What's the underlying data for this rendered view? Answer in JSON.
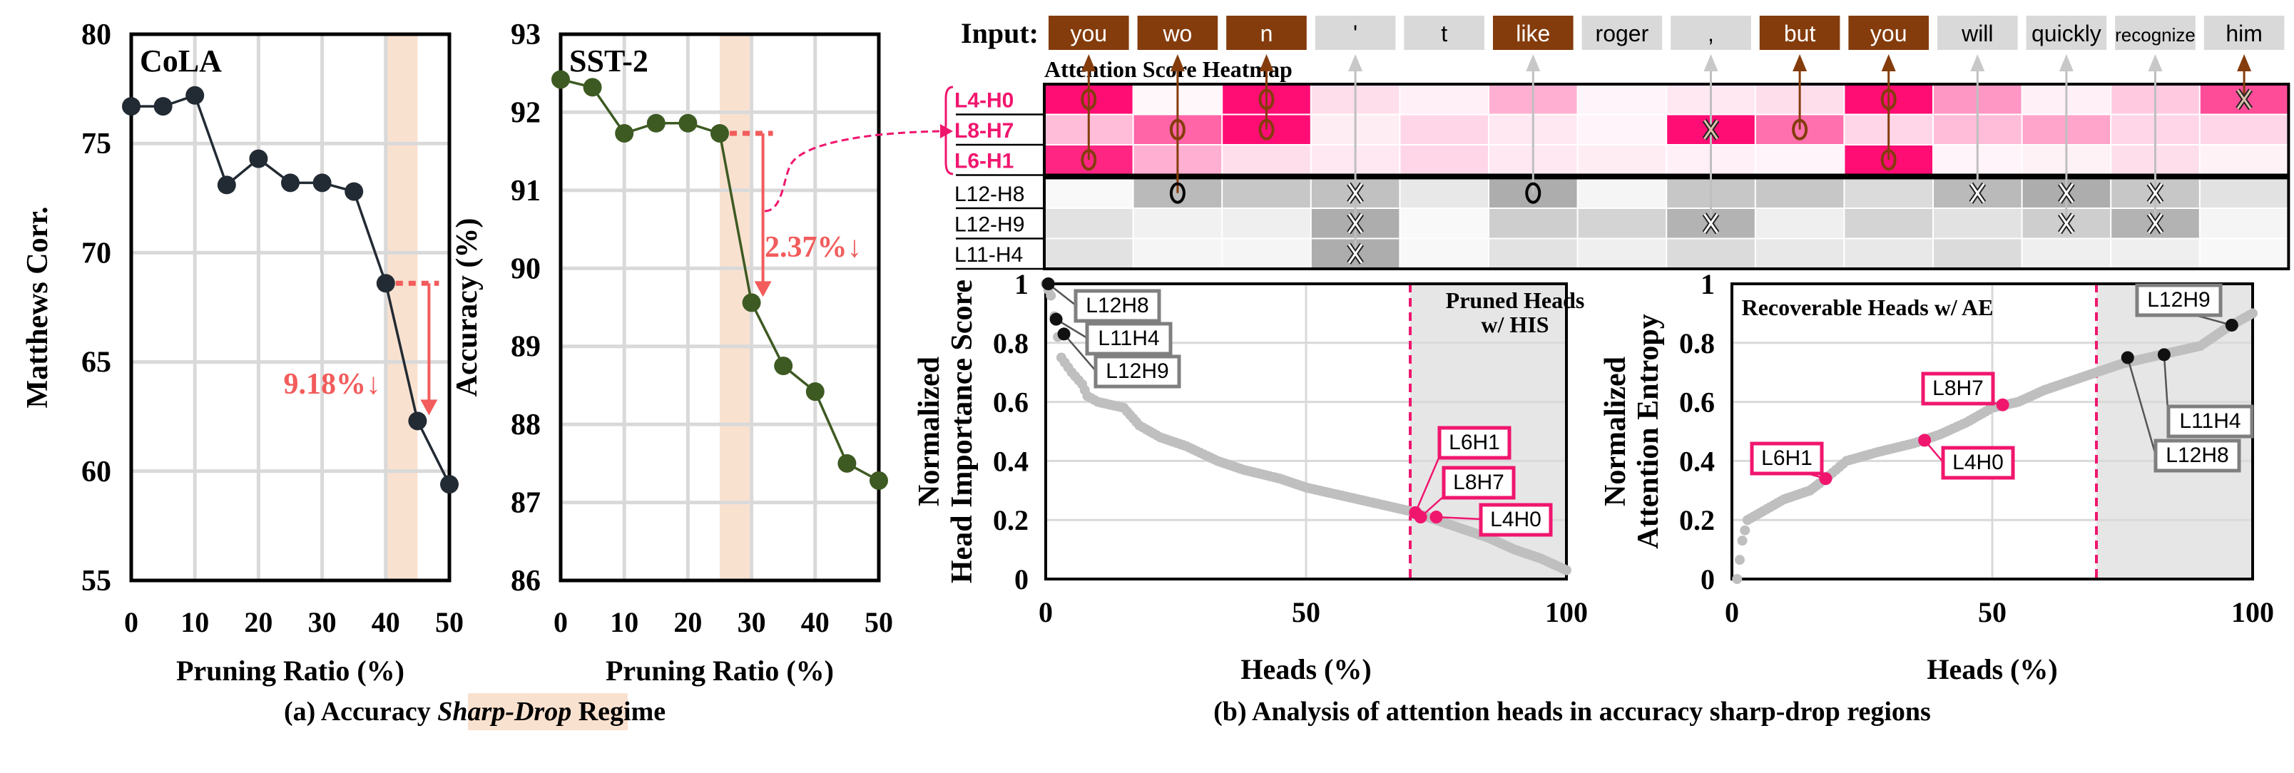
{
  "colors": {
    "cola_line": "#222a33",
    "sst2_line": "#3d5a22",
    "drop_highlight": "#f9e1d0",
    "drop_arrow": "#f25c5c",
    "pink_accent": "#f0166e",
    "token_selected": "#843c0c",
    "token_unselected": "#d9d9d9",
    "grid": "#d9d9d9",
    "scatter_gray": "#bfbfbf",
    "pruned_region": "#e6e6e6"
  },
  "chart_data": [
    {
      "id": "cola",
      "type": "line",
      "title": "CoLA",
      "xlabel": "Pruning Ratio (%)",
      "ylabel": "Matthews Corr.",
      "x": [
        0,
        5,
        10,
        15,
        20,
        25,
        30,
        35,
        40,
        45,
        50
      ],
      "values": [
        76.7,
        76.7,
        77.2,
        73.1,
        74.3,
        73.2,
        73.2,
        72.8,
        68.6,
        62.3,
        59.4
      ],
      "xlim": [
        0,
        50
      ],
      "ylim": [
        55,
        80
      ],
      "xticks": [
        "0",
        "10",
        "20",
        "30",
        "40",
        "50"
      ],
      "yticks": [
        "55",
        "60",
        "65",
        "70",
        "75",
        "80"
      ],
      "grid": true,
      "highlight_range": [
        40,
        45
      ],
      "annotation": {
        "text": "9.18%↓",
        "from_x": 40,
        "to_x": 45
      }
    },
    {
      "id": "sst2",
      "type": "line",
      "title": "SST-2",
      "xlabel": "Pruning Ratio (%)",
      "ylabel": "Accuracy (%)",
      "x": [
        0,
        5,
        10,
        15,
        20,
        25,
        30,
        35,
        40,
        45,
        50
      ],
      "values": [
        92.42,
        92.32,
        91.73,
        91.86,
        91.86,
        91.73,
        89.56,
        88.75,
        88.42,
        87.5,
        87.28
      ],
      "xlim": [
        0,
        50
      ],
      "ylim": [
        86,
        93
      ],
      "xticks": [
        "0",
        "10",
        "20",
        "30",
        "40",
        "50"
      ],
      "yticks": [
        "86",
        "87",
        "88",
        "89",
        "90",
        "91",
        "92",
        "93"
      ],
      "grid": true,
      "highlight_range": [
        25,
        30
      ],
      "annotation": {
        "text": "2.37%↓",
        "from_x": 25,
        "to_x": 30
      }
    },
    {
      "id": "heatmap",
      "type": "heatmap",
      "title": "Attention Score Heatmap",
      "input_label": "Input:",
      "tokens": [
        {
          "text": "you",
          "selected": true
        },
        {
          "text": "wo",
          "selected": true
        },
        {
          "text": "n",
          "selected": true
        },
        {
          "text": "'",
          "selected": false
        },
        {
          "text": "t",
          "selected": false
        },
        {
          "text": "like",
          "selected": true
        },
        {
          "text": "roger",
          "selected": false
        },
        {
          "text": ",",
          "selected": false
        },
        {
          "text": "but",
          "selected": true
        },
        {
          "text": "you",
          "selected": true
        },
        {
          "text": "will",
          "selected": false
        },
        {
          "text": "quickly",
          "selected": false
        },
        {
          "text": "recognize",
          "selected": false
        },
        {
          "text": "him",
          "selected": false
        }
      ],
      "rows": [
        {
          "label": "L4-H0",
          "group": "pink",
          "values": [
            0.95,
            0.02,
            0.95,
            0.12,
            0.05,
            0.3,
            0.03,
            0.08,
            0.12,
            0.95,
            0.4,
            0.05,
            0.2,
            0.7
          ],
          "marks": [
            [
              "o",
              0
            ],
            [
              "o",
              2
            ],
            [
              "o",
              9
            ],
            [
              "x",
              13
            ]
          ]
        },
        {
          "label": "L8-H7",
          "group": "pink",
          "values": [
            0.25,
            0.6,
            0.95,
            0.06,
            0.15,
            0.08,
            0.03,
            0.95,
            0.55,
            0.15,
            0.25,
            0.35,
            0.15,
            0.15
          ],
          "marks": [
            [
              "o",
              1
            ],
            [
              "o",
              2
            ],
            [
              "x",
              7
            ],
            [
              "o",
              8
            ]
          ]
        },
        {
          "label": "L6-H1",
          "group": "pink",
          "values": [
            0.85,
            0.3,
            0.12,
            0.08,
            0.15,
            0.08,
            0.06,
            0.05,
            0.03,
            0.95,
            0.03,
            0.04,
            0.12,
            0.04
          ],
          "marks": [
            [
              "o",
              0
            ],
            [
              "o",
              9
            ]
          ]
        },
        {
          "label": "L12-H8",
          "group": "gray",
          "values": [
            0.02,
            0.5,
            0.4,
            0.45,
            0.15,
            0.6,
            0.05,
            0.4,
            0.4,
            0.25,
            0.5,
            0.6,
            0.4,
            0.2
          ],
          "marks": [
            [
              "o",
              1
            ],
            [
              "x",
              3
            ],
            [
              "o",
              5
            ],
            [
              "x",
              10
            ],
            [
              "x",
              11
            ],
            [
              "x",
              12
            ]
          ]
        },
        {
          "label": "L12-H9",
          "group": "gray",
          "values": [
            0.2,
            0.08,
            0.1,
            0.6,
            0.02,
            0.35,
            0.3,
            0.55,
            0.1,
            0.3,
            0.2,
            0.35,
            0.55,
            0.05
          ],
          "marks": [
            [
              "x",
              3
            ],
            [
              "x",
              7
            ],
            [
              "x",
              11
            ],
            [
              "x",
              12
            ]
          ]
        },
        {
          "label": "L11-H4",
          "group": "gray",
          "values": [
            0.2,
            0.05,
            0.05,
            0.6,
            0.03,
            0.2,
            0.1,
            0.25,
            0.15,
            0.15,
            0.25,
            0.1,
            0.1,
            0.03
          ],
          "marks": [
            [
              "x",
              3
            ]
          ]
        }
      ],
      "arrows": [
        {
          "token": 0,
          "to_row": 2,
          "selected": true
        },
        {
          "token": 1,
          "to_row": 3,
          "selected": true
        },
        {
          "token": 2,
          "to_row": 1,
          "selected": true
        },
        {
          "token": 3,
          "to_row": 5,
          "selected": false
        },
        {
          "token": 5,
          "to_row": 3,
          "selected": false
        },
        {
          "token": 7,
          "to_row": 4,
          "selected": false
        },
        {
          "token": 8,
          "to_row": 1,
          "selected": true
        },
        {
          "token": 9,
          "to_row": 2,
          "selected": true
        },
        {
          "token": 10,
          "to_row": 3,
          "selected": false
        },
        {
          "token": 11,
          "to_row": 4,
          "selected": false
        },
        {
          "token": 12,
          "to_row": 4,
          "selected": false
        },
        {
          "token": 13,
          "to_row": 0,
          "selected": true
        }
      ]
    },
    {
      "id": "his",
      "type": "scatter",
      "xlabel": "Heads (%)",
      "ylabel": "Normalized Head Importance Score",
      "xlim": [
        0,
        100
      ],
      "ylim": [
        0,
        1
      ],
      "xticks": [
        "0",
        "50",
        "100"
      ],
      "yticks": [
        "0",
        "0.2",
        "0.4",
        "0.6",
        "0.8",
        "1"
      ],
      "grid": true,
      "threshold_x": 70,
      "region_label": "Pruned Heads w/ HIS",
      "curve": [
        [
          0,
          1.0
        ],
        [
          1,
          0.96
        ],
        [
          3,
          0.75
        ],
        [
          5,
          0.7
        ],
        [
          7,
          0.66
        ],
        [
          8,
          0.62
        ],
        [
          10,
          0.6
        ],
        [
          15,
          0.58
        ],
        [
          18,
          0.52
        ],
        [
          22,
          0.48
        ],
        [
          27,
          0.45
        ],
        [
          33,
          0.4
        ],
        [
          38,
          0.37
        ],
        [
          45,
          0.34
        ],
        [
          50,
          0.31
        ],
        [
          55,
          0.29
        ],
        [
          60,
          0.27
        ],
        [
          65,
          0.25
        ],
        [
          70,
          0.23
        ],
        [
          75,
          0.2
        ],
        [
          80,
          0.17
        ],
        [
          85,
          0.14
        ],
        [
          90,
          0.1
        ],
        [
          95,
          0.07
        ],
        [
          100,
          0.03
        ]
      ],
      "labeled_points": [
        {
          "label": "L12H8",
          "x": 0.5,
          "y": 1.0,
          "color": "black"
        },
        {
          "label": "L11H4",
          "x": 2,
          "y": 0.88,
          "color": "black"
        },
        {
          "label": "L12H9",
          "x": 3.5,
          "y": 0.83,
          "color": "black"
        },
        {
          "label": "L6H1",
          "x": 71,
          "y": 0.225,
          "color": "pink"
        },
        {
          "label": "L8H7",
          "x": 72,
          "y": 0.21,
          "color": "pink"
        },
        {
          "label": "L4H0",
          "x": 75,
          "y": 0.21,
          "color": "pink"
        }
      ]
    },
    {
      "id": "ae",
      "type": "scatter",
      "xlabel": "Heads (%)",
      "ylabel": "Normalized Attention Entropy",
      "xlim": [
        0,
        100
      ],
      "ylim": [
        0,
        1
      ],
      "xticks": [
        "0",
        "50",
        "100"
      ],
      "yticks": [
        "0",
        "0.2",
        "0.4",
        "0.6",
        "0.8",
        "1"
      ],
      "grid": true,
      "threshold_x": 70,
      "region_label": "Recoverable Heads w/ AE",
      "curve": [
        [
          1,
          0.0
        ],
        [
          2,
          0.13
        ],
        [
          3,
          0.2
        ],
        [
          6,
          0.23
        ],
        [
          10,
          0.27
        ],
        [
          15,
          0.3
        ],
        [
          18,
          0.34
        ],
        [
          22,
          0.4
        ],
        [
          28,
          0.43
        ],
        [
          35,
          0.46
        ],
        [
          40,
          0.49
        ],
        [
          45,
          0.53
        ],
        [
          50,
          0.58
        ],
        [
          55,
          0.6
        ],
        [
          60,
          0.64
        ],
        [
          65,
          0.67
        ],
        [
          70,
          0.7
        ],
        [
          75,
          0.73
        ],
        [
          80,
          0.75
        ],
        [
          85,
          0.77
        ],
        [
          90,
          0.79
        ],
        [
          95,
          0.85
        ],
        [
          100,
          0.9
        ]
      ],
      "labeled_points": [
        {
          "label": "L6H1",
          "x": 18,
          "y": 0.34,
          "color": "pink"
        },
        {
          "label": "L4H0",
          "x": 37,
          "y": 0.47,
          "color": "pink"
        },
        {
          "label": "L8H7",
          "x": 52,
          "y": 0.59,
          "color": "pink"
        },
        {
          "label": "L12H8",
          "x": 76,
          "y": 0.75,
          "color": "black"
        },
        {
          "label": "L11H4",
          "x": 83,
          "y": 0.76,
          "color": "black"
        },
        {
          "label": "L12H9",
          "x": 96,
          "y": 0.86,
          "color": "black"
        }
      ]
    }
  ],
  "captions": {
    "a_prefix": "(a) Accuracy ",
    "a_emph": "Sharp-Drop",
    "a_suffix": " Regime",
    "b": "(b) Analysis of attention heads in accuracy sharp-drop regions"
  }
}
